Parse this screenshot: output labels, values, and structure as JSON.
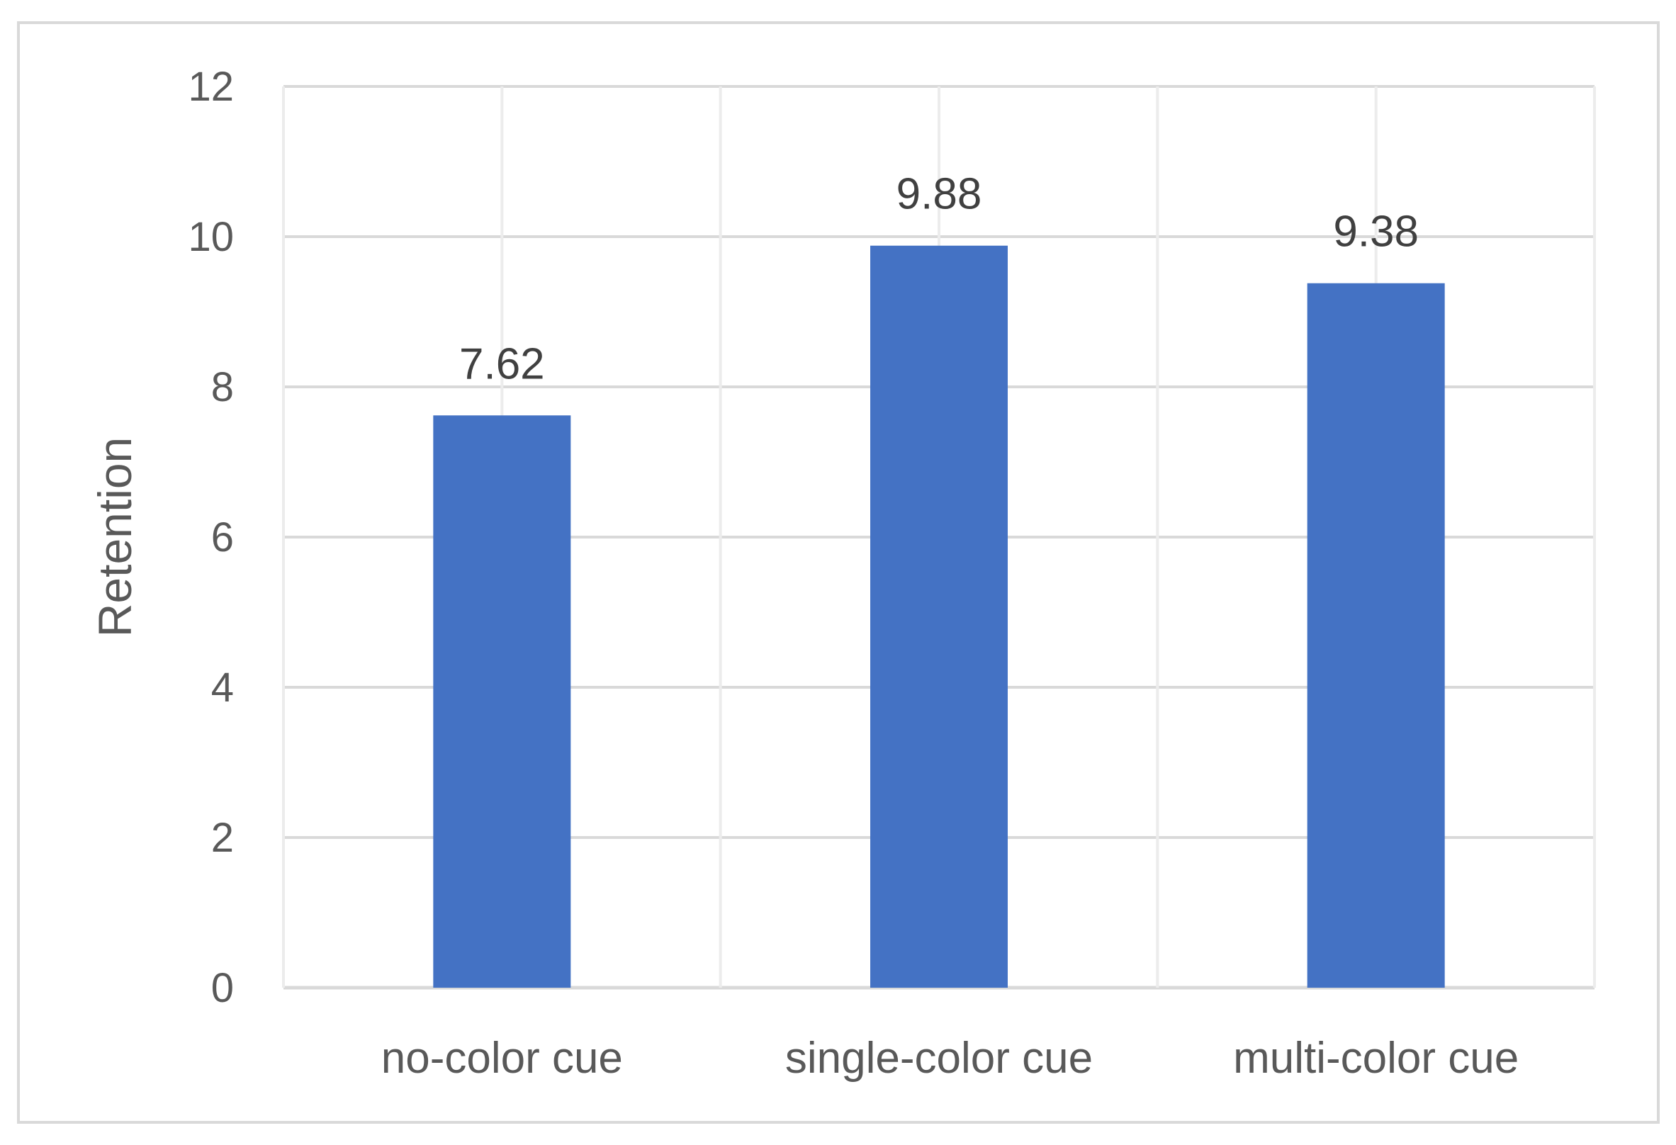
{
  "chart_data": {
    "type": "bar",
    "categories": [
      "no-color cue",
      "single-color cue",
      "multi-color cue"
    ],
    "values": [
      7.62,
      9.88,
      9.38
    ],
    "data_labels": [
      "7.62",
      "9.88",
      "9.38"
    ],
    "title": "",
    "xlabel": "",
    "ylabel": "Retention",
    "ylim": [
      0,
      12
    ],
    "yticks": [
      0,
      2,
      4,
      6,
      8,
      10,
      12
    ],
    "ytick_labels": [
      "0",
      "2",
      "4",
      "6",
      "8",
      "10",
      "12"
    ],
    "grid": true,
    "legend": "none",
    "bar_color": "#4472c4",
    "gridline_color": "#d9d9d9"
  }
}
